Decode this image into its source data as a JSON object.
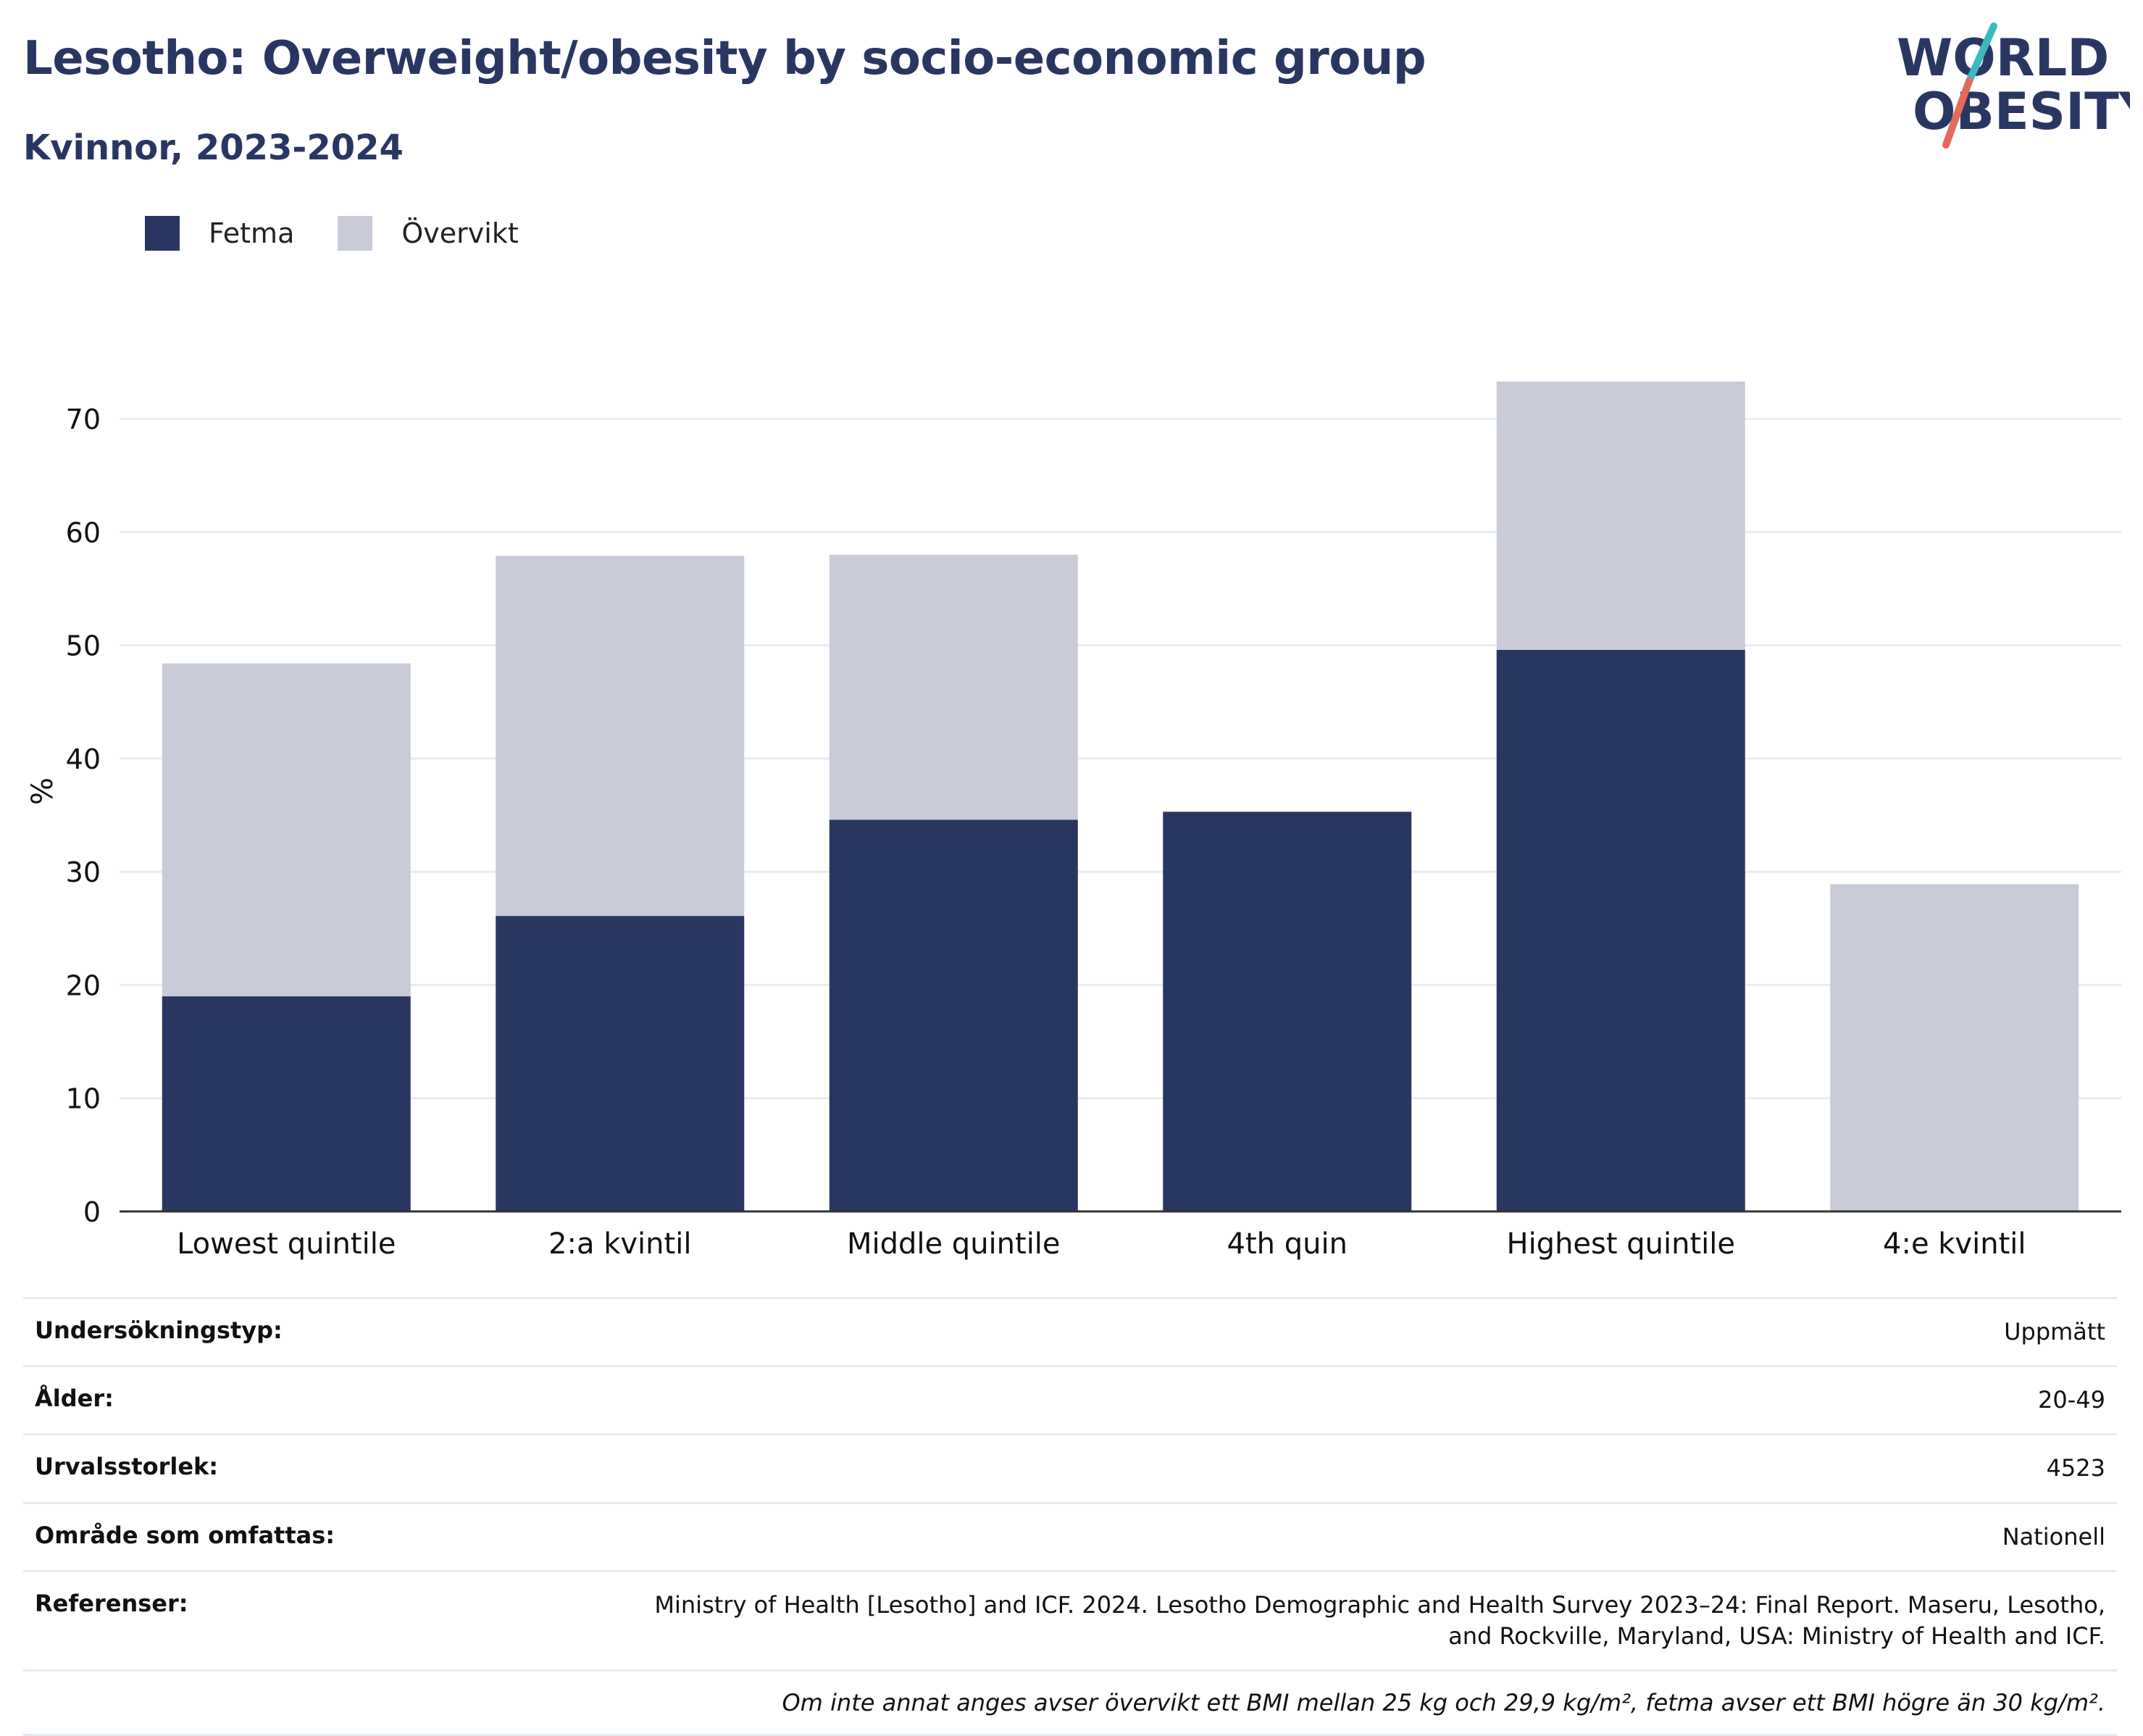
{
  "header": {
    "title": "Lesotho: Overweight/obesity by socio-economic group",
    "subtitle": "Kvinnor, 2023-2024"
  },
  "logo": {
    "line1": "WORLD",
    "line2": "OBESITY"
  },
  "colors": {
    "fetma": "#2a3662",
    "overvikt": "#c9ccd8",
    "text": "#2a3662",
    "axis": "#333333",
    "grid": "#e9ecf1"
  },
  "legend": [
    {
      "label": "Fetma",
      "color": "#2a3662"
    },
    {
      "label": "Övervikt",
      "color": "#c9ccd8"
    }
  ],
  "chart_data": {
    "type": "bar",
    "stacked": true,
    "categories": [
      "Lowest quintile",
      "2:a kvintil",
      "Middle quintile",
      "4th quin",
      "Highest quintile",
      "4:e kvintil"
    ],
    "series": [
      {
        "name": "Fetma",
        "values": [
          19.0,
          26.1,
          34.6,
          35.3,
          49.6,
          0
        ]
      },
      {
        "name": "Övervikt",
        "values": [
          29.4,
          31.8,
          23.4,
          0,
          23.7,
          28.9
        ]
      }
    ],
    "ylabel": "%",
    "ylim": [
      0,
      75
    ],
    "yticks": [
      0,
      10,
      20,
      30,
      40,
      50,
      60,
      70
    ],
    "grid": true,
    "legend_position": "top-left"
  },
  "info": [
    {
      "key": "Undersökningstyp:",
      "value": "Uppmätt"
    },
    {
      "key": "Ålder:",
      "value": "20-49"
    },
    {
      "key": "Urvalsstorlek:",
      "value": "4523"
    },
    {
      "key": "Område som omfattas:",
      "value": "Nationell"
    },
    {
      "key": "Referenser:",
      "value": "Ministry of Health [Lesotho] and ICF. 2024. Lesotho Demographic and Health Survey 2023–24: Final Report. Maseru, Lesotho, and Rockville, Maryland, USA: Ministry of Health and ICF."
    }
  ],
  "note": "Om inte annat anges avser övervikt ett BMI mellan 25 kg och 29,9 kg/m², fetma avser ett BMI högre än 30 kg/m²."
}
